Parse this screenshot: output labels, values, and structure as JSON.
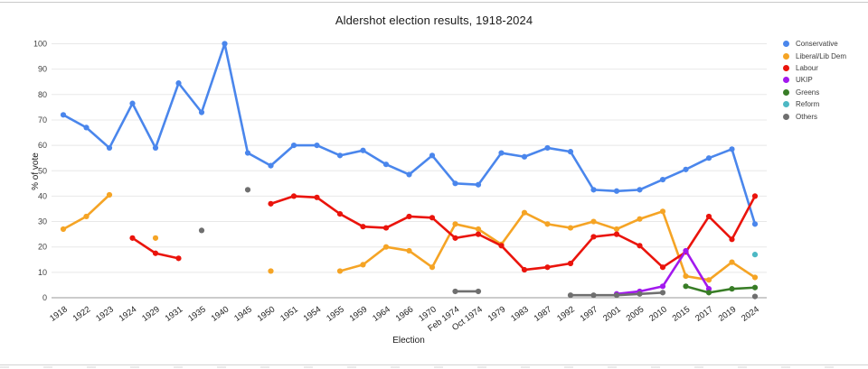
{
  "chart_data": {
    "type": "line",
    "title": "Aldershot election results, 1918-2024",
    "xlabel": "Election",
    "ylabel": "% of vote",
    "ylim": [
      0,
      100
    ],
    "y_ticks": [
      0,
      10,
      20,
      30,
      40,
      50,
      60,
      70,
      80,
      90,
      100
    ],
    "grid": true,
    "legend_position": "right",
    "categories": [
      "1918",
      "1922",
      "1923",
      "1924",
      "1929",
      "1931",
      "1935",
      "1940",
      "1945",
      "1950",
      "1951",
      "1954",
      "1955",
      "1959",
      "1964",
      "1966",
      "1970",
      "Feb 1974",
      "Oct 1974",
      "1979",
      "1983",
      "1987",
      "1992",
      "1997",
      "2001",
      "2005",
      "2010",
      "2015",
      "2017",
      "2019",
      "2024"
    ],
    "series": [
      {
        "name": "Conservative",
        "color": "#4a86ec",
        "values": [
          72,
          67,
          59,
          76.5,
          59,
          84.5,
          73,
          100,
          57,
          52,
          60,
          60,
          56,
          58,
          52.5,
          48.5,
          56,
          45,
          44.5,
          57,
          55.5,
          59,
          57.5,
          42.5,
          42,
          42.5,
          46.5,
          50.5,
          55,
          58.5,
          29
        ]
      },
      {
        "name": "Liberal/Lib Dem",
        "color": "#f5a425",
        "values": [
          27,
          32,
          40.5,
          null,
          23.5,
          null,
          null,
          null,
          null,
          10.5,
          null,
          null,
          10.5,
          13,
          20,
          18.5,
          12,
          29,
          27,
          21,
          33.5,
          29,
          27.5,
          30,
          27,
          31,
          34,
          8.5,
          7,
          14,
          8
        ]
      },
      {
        "name": "Labour",
        "color": "#ea140c",
        "values": [
          null,
          null,
          null,
          23.5,
          17.5,
          15.5,
          null,
          null,
          null,
          37,
          40,
          39.5,
          33,
          28,
          27.5,
          32,
          31.5,
          23.5,
          25,
          20.5,
          11,
          12,
          13.5,
          24,
          25,
          20.5,
          12,
          18,
          32,
          23,
          40
        ]
      },
      {
        "name": "UKIP",
        "color": "#a219ee",
        "values": [
          null,
          null,
          null,
          null,
          null,
          null,
          null,
          null,
          null,
          null,
          null,
          null,
          null,
          null,
          null,
          null,
          null,
          null,
          null,
          null,
          null,
          null,
          null,
          null,
          1.5,
          2.5,
          4.5,
          18.5,
          3.5,
          null,
          null
        ]
      },
      {
        "name": "Greens",
        "color": "#387d26",
        "values": [
          null,
          null,
          null,
          null,
          null,
          null,
          null,
          null,
          null,
          null,
          null,
          null,
          null,
          null,
          null,
          null,
          null,
          null,
          null,
          null,
          null,
          null,
          null,
          null,
          null,
          null,
          null,
          4.5,
          2,
          3.5,
          4
        ]
      },
      {
        "name": "Reform",
        "color": "#4db8c4",
        "values": [
          null,
          null,
          null,
          null,
          null,
          null,
          null,
          null,
          null,
          null,
          null,
          null,
          null,
          null,
          null,
          null,
          null,
          null,
          null,
          null,
          null,
          null,
          null,
          null,
          null,
          null,
          null,
          null,
          null,
          null,
          17
        ]
      },
      {
        "name": "Others",
        "color": "#6f6f6f",
        "values": [
          null,
          null,
          null,
          null,
          null,
          null,
          26.5,
          null,
          42.5,
          null,
          null,
          null,
          null,
          null,
          null,
          null,
          null,
          2.5,
          2.5,
          null,
          null,
          null,
          1,
          1,
          1,
          1.5,
          2,
          null,
          null,
          null,
          0.5
        ]
      }
    ]
  }
}
